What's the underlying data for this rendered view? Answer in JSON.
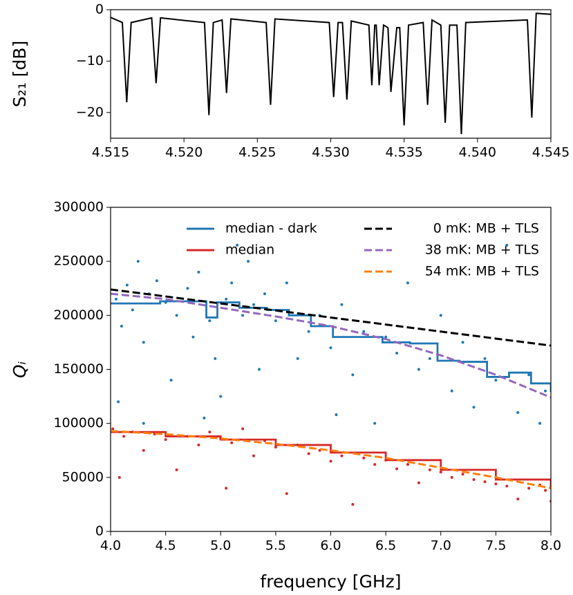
{
  "chart_data": [
    {
      "type": "line",
      "ylabel": "S₂₁ [dB]",
      "xlim": [
        4.515,
        4.545
      ],
      "ylim": [
        -25,
        0
      ],
      "xticks": [
        {
          "value": 4.515,
          "label": "4.515"
        },
        {
          "value": 4.52,
          "label": "4.520"
        },
        {
          "value": 4.525,
          "label": "4.525"
        },
        {
          "value": 4.53,
          "label": "4.530"
        },
        {
          "value": 4.535,
          "label": "4.535"
        },
        {
          "value": 4.54,
          "label": "4.540"
        },
        {
          "value": 4.545,
          "label": "4.545"
        }
      ],
      "yticks": [
        0,
        {
          "value": -10,
          "label": "−10"
        },
        {
          "value": -20,
          "label": "−20"
        }
      ],
      "series": [
        {
          "type": "line",
          "color": "#000000",
          "x": [
            4.515,
            4.5158,
            4.5161,
            4.5164,
            4.5178,
            4.5181,
            4.5184,
            4.5214,
            4.5217,
            4.522,
            4.5226,
            4.5229,
            4.5232,
            4.5256,
            4.5259,
            4.5262,
            4.5299,
            4.5302,
            4.5305,
            4.5308,
            4.5311,
            4.5314,
            4.5326,
            4.5328,
            4.533,
            4.5331,
            4.5333,
            4.5336,
            4.5339,
            4.5341,
            4.5345,
            4.5347,
            4.535,
            4.5353,
            4.5363,
            4.5366,
            4.5369,
            4.5375,
            4.5378,
            4.5381,
            4.5386,
            4.5389,
            4.5392,
            4.5434,
            4.5437,
            4.544,
            4.545
          ],
          "values": [
            -1.5,
            -2.5,
            -18,
            -2.5,
            -1.6,
            -14.3,
            -1.6,
            -2.5,
            -20.5,
            -2.5,
            -2,
            -16.2,
            -1.8,
            -2.5,
            -18.5,
            -1.8,
            -2.5,
            -17,
            -2.5,
            -2.5,
            -17.5,
            -2.2,
            -3,
            -14.7,
            -3,
            -3,
            -14.7,
            -3,
            -3.5,
            -16,
            -3.5,
            -3.5,
            -22.5,
            -3,
            -2.5,
            -18.5,
            -2,
            -3,
            -22,
            -3,
            -3,
            -24.2,
            -2.5,
            -2,
            -21,
            -0.7,
            -0.9
          ]
        }
      ]
    },
    {
      "type": "combo",
      "xlabel": "frequency [GHz]",
      "ylabel": "Qᵢ",
      "xlim": [
        4.0,
        8.0
      ],
      "ylim": [
        0,
        300000
      ],
      "xticks": [
        {
          "value": 4,
          "label": "4.0"
        },
        {
          "value": 4.5,
          "label": "4.5"
        },
        {
          "value": 5,
          "label": "5.0"
        },
        {
          "value": 5.5,
          "label": "5.5"
        },
        {
          "value": 6,
          "label": "6.0"
        },
        {
          "value": 6.5,
          "label": "6.5"
        },
        {
          "value": 7,
          "label": "7.0"
        },
        {
          "value": 7.5,
          "label": "7.5"
        },
        {
          "value": 8,
          "label": "8.0"
        }
      ],
      "yticks": [
        0,
        50000,
        100000,
        150000,
        200000,
        250000,
        300000
      ],
      "legend": "upper right",
      "series": [
        {
          "type": "scatter",
          "color": "#1f77b4",
          "x": [
            4.05,
            4.1,
            4.15,
            4.2,
            4.25,
            4.3,
            4.35,
            4.42,
            4.5,
            4.55,
            4.6,
            4.7,
            4.75,
            4.8,
            4.85,
            4.9,
            4.95,
            5.0,
            5.05,
            5.1,
            5.15,
            5.2,
            5.25,
            5.3,
            5.35,
            5.4,
            5.5,
            5.6,
            5.7,
            5.8,
            5.9,
            6.0,
            6.1,
            6.2,
            6.3,
            6.4,
            6.5,
            6.6,
            6.7,
            6.8,
            6.9,
            7.0,
            7.1,
            7.2,
            7.3,
            7.4,
            7.5,
            7.6,
            7.7,
            7.8,
            7.9,
            7.95,
            4.07,
            6.05,
            4.3
          ],
          "values": [
            215000,
            190000,
            228000,
            205000,
            250000,
            175000,
            220000,
            232000,
            212000,
            140000,
            200000,
            225000,
            180000,
            240000,
            105000,
            195000,
            160000,
            125000,
            215000,
            230000,
            265000,
            200000,
            250000,
            210000,
            150000,
            220000,
            195000,
            230000,
            160000,
            185000,
            200000,
            170000,
            210000,
            145000,
            185000,
            100000,
            180000,
            165000,
            230000,
            150000,
            160000,
            200000,
            130000,
            175000,
            115000,
            160000,
            140000,
            265000,
            110000,
            145000,
            100000,
            130000,
            120000,
            108000,
            100000
          ]
        },
        {
          "type": "scatter",
          "color": "#d62728",
          "x": [
            4.02,
            4.08,
            4.12,
            4.2,
            4.3,
            4.4,
            4.5,
            4.6,
            4.7,
            4.8,
            4.9,
            5.0,
            5.05,
            5.1,
            5.2,
            5.3,
            5.4,
            5.5,
            5.6,
            5.7,
            5.8,
            5.9,
            6.0,
            6.1,
            6.2,
            6.3,
            6.4,
            6.5,
            6.6,
            6.7,
            6.8,
            6.9,
            7.0,
            7.1,
            7.2,
            7.3,
            7.4,
            7.5,
            7.6,
            7.7,
            7.8,
            7.9,
            7.95,
            8.0
          ],
          "values": [
            95000,
            50000,
            88000,
            92000,
            75000,
            90000,
            85000,
            57000,
            88000,
            80000,
            92000,
            86000,
            40000,
            82000,
            95000,
            70000,
            84000,
            78000,
            35000,
            80000,
            72000,
            75000,
            65000,
            70000,
            25000,
            68000,
            62000,
            66000,
            58000,
            62000,
            45000,
            57000,
            55000,
            50000,
            53000,
            48000,
            46000,
            44000,
            42000,
            30000,
            40000,
            43000,
            38000,
            28000
          ]
        },
        {
          "type": "step",
          "name": "median - dark",
          "color": "#1f77b4",
          "x": [
            4.0,
            4.45,
            4.87,
            4.97,
            5.17,
            5.42,
            5.62,
            5.82,
            6.02,
            6.47,
            6.72,
            6.97,
            7.17,
            7.42,
            7.62,
            7.82,
            8.0
          ],
          "values": [
            211000,
            213000,
            198000,
            212000,
            207000,
            205000,
            200000,
            190000,
            180000,
            175000,
            174000,
            158000,
            157000,
            143000,
            147000,
            137000,
            129000
          ]
        },
        {
          "type": "step",
          "name": "median",
          "color": "#d62728",
          "x": [
            4.0,
            4.5,
            5.0,
            5.5,
            6.0,
            6.5,
            7.0,
            7.5,
            8.0
          ],
          "values": [
            92000,
            88000,
            85000,
            80000,
            73000,
            66000,
            57000,
            48000,
            40000
          ]
        },
        {
          "type": "line",
          "dash": true,
          "name": "0 mK: MB + TLS",
          "color": "#000000",
          "x": [
            4.0,
            5.0,
            6.0,
            7.0,
            8.0
          ],
          "values": [
            224000,
            211000,
            198000,
            185000,
            172000
          ]
        },
        {
          "type": "line",
          "dash": true,
          "name": "38 mK: MB + TLS",
          "color": "#9467bd",
          "x": [
            4.0,
            4.5,
            5.0,
            5.5,
            6.0,
            6.5,
            7.0,
            7.5,
            8.0
          ],
          "values": [
            220000,
            215000,
            207000,
            199000,
            190000,
            178000,
            163000,
            145000,
            124000
          ]
        },
        {
          "type": "line",
          "dash": true,
          "name": "54 mK: MB + TLS",
          "color": "#ff7f0e",
          "x": [
            4.0,
            4.5,
            5.0,
            5.5,
            6.0,
            6.5,
            7.0,
            7.5,
            8.0
          ],
          "values": [
            93000,
            90000,
            86000,
            81000,
            75000,
            68000,
            59000,
            50000,
            40000
          ]
        }
      ]
    }
  ]
}
